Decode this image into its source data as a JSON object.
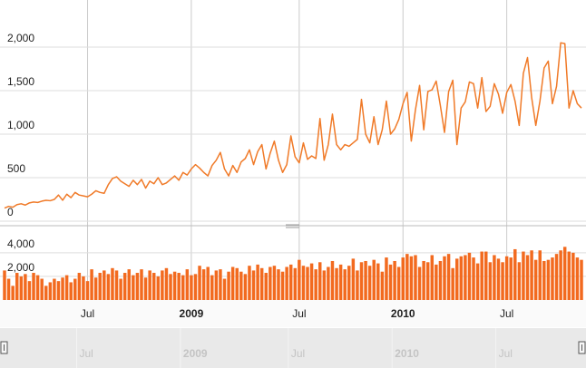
{
  "chart_data": [
    {
      "type": "line",
      "color": "#f07a28",
      "grid": true,
      "categories": [
        null,
        null,
        null,
        null,
        null,
        null,
        null,
        null,
        null,
        null,
        null,
        null,
        null,
        null,
        null,
        null,
        null,
        null,
        null,
        null,
        "Jul",
        null,
        null,
        null,
        null,
        null,
        null,
        null,
        null,
        null,
        null,
        null,
        null,
        null,
        null,
        null,
        null,
        null,
        null,
        null,
        null,
        null,
        null,
        null,
        null,
        "2009",
        null,
        null,
        null,
        null,
        null,
        null,
        null,
        null,
        null,
        null,
        null,
        null,
        null,
        null,
        null,
        null,
        null,
        null,
        null,
        null,
        null,
        null,
        null,
        null,
        null,
        "Jul",
        null,
        null,
        null,
        null,
        null,
        null,
        null,
        null,
        null,
        null,
        null,
        null,
        null,
        null,
        null,
        null,
        null,
        null,
        null,
        null,
        null,
        null,
        null,
        null,
        "2010",
        null,
        null,
        null,
        null,
        null,
        null,
        null,
        null,
        null,
        null,
        null,
        null,
        null,
        null,
        null,
        null,
        null,
        null,
        null,
        null,
        null,
        null,
        null,
        null,
        "Jul",
        null,
        null,
        null,
        null,
        null,
        null,
        null,
        null,
        null,
        null,
        null,
        null,
        null,
        null,
        null,
        null,
        null,
        null
      ],
      "values": [
        150,
        170,
        160,
        190,
        200,
        185,
        210,
        220,
        215,
        230,
        240,
        235,
        250,
        300,
        240,
        310,
        270,
        330,
        300,
        290,
        280,
        310,
        350,
        330,
        320,
        420,
        490,
        510,
        460,
        430,
        400,
        470,
        420,
        480,
        380,
        460,
        430,
        500,
        420,
        440,
        480,
        520,
        470,
        560,
        530,
        600,
        650,
        610,
        560,
        520,
        640,
        700,
        790,
        600,
        520,
        640,
        560,
        680,
        720,
        820,
        650,
        800,
        880,
        600,
        780,
        920,
        700,
        560,
        650,
        980,
        740,
        670,
        900,
        710,
        750,
        720,
        1180,
        700,
        880,
        1230,
        880,
        820,
        880,
        860,
        900,
        940,
        1400,
        1000,
        900,
        1200,
        880,
        1050,
        1380,
        1000,
        1060,
        1170,
        1350,
        1480,
        920,
        1280,
        1560,
        1050,
        1490,
        1510,
        1610,
        1330,
        1020,
        1490,
        1620,
        880,
        1300,
        1370,
        1600,
        1580,
        1300,
        1650,
        1260,
        1320,
        1580,
        1460,
        1240,
        1480,
        1570,
        1380,
        1100,
        1700,
        1880,
        1420,
        1100,
        1380,
        1760,
        1840,
        1350,
        1550,
        2050,
        2040,
        1300,
        1500,
        1350,
        1300
      ],
      "ylim": [
        0,
        2500
      ],
      "yticks": [
        0,
        500,
        {
          "value": 1000,
          "label": "1,000"
        },
        {
          "value": 1500,
          "label": "1,500"
        },
        {
          "value": 2000,
          "label": "2,000"
        }
      ]
    },
    {
      "type": "bar",
      "color": "#f26a1f",
      "grid": true,
      "values": [
        2500,
        1800,
        1200,
        2300,
        2000,
        2200,
        1600,
        2300,
        2100,
        1800,
        1200,
        1500,
        1800,
        1600,
        1900,
        2100,
        1500,
        1800,
        2300,
        2000,
        1600,
        2600,
        1900,
        2300,
        2500,
        2200,
        2700,
        2500,
        1800,
        2300,
        2600,
        2100,
        2300,
        2600,
        1900,
        2500,
        2300,
        2000,
        2500,
        2700,
        2200,
        2400,
        2300,
        2100,
        2600,
        2100,
        2200,
        2900,
        2600,
        2800,
        2100,
        2500,
        2600,
        1800,
        2400,
        2800,
        2700,
        2400,
        2200,
        2900,
        2500,
        3000,
        2700,
        2300,
        2800,
        2900,
        2600,
        2400,
        2800,
        3000,
        2700,
        3400,
        2900,
        2800,
        3100,
        2600,
        3200,
        2500,
        2800,
        3300,
        2700,
        3000,
        2600,
        2900,
        3500,
        2500,
        3200,
        3300,
        2900,
        3400,
        3100,
        2400,
        3600,
        3000,
        3300,
        2800,
        3600,
        3900,
        3700,
        3800,
        2800,
        3300,
        3200,
        3800,
        3000,
        3300,
        3700,
        3900,
        2700,
        3500,
        3700,
        3800,
        4000,
        3600,
        3100,
        4100,
        4100,
        3200,
        3800,
        3500,
        3200,
        3700,
        3600,
        4300,
        3200,
        4100,
        3800,
        4200,
        3400,
        4200,
        3300,
        3400,
        3600,
        3900,
        4200,
        4500,
        4100,
        4000,
        3600,
        3400
      ],
      "ylim": [
        0,
        5600
      ],
      "yticks": [
        {
          "value": 2000,
          "label": "2,000"
        },
        {
          "value": 4000,
          "label": "4,000"
        }
      ]
    }
  ]
}
